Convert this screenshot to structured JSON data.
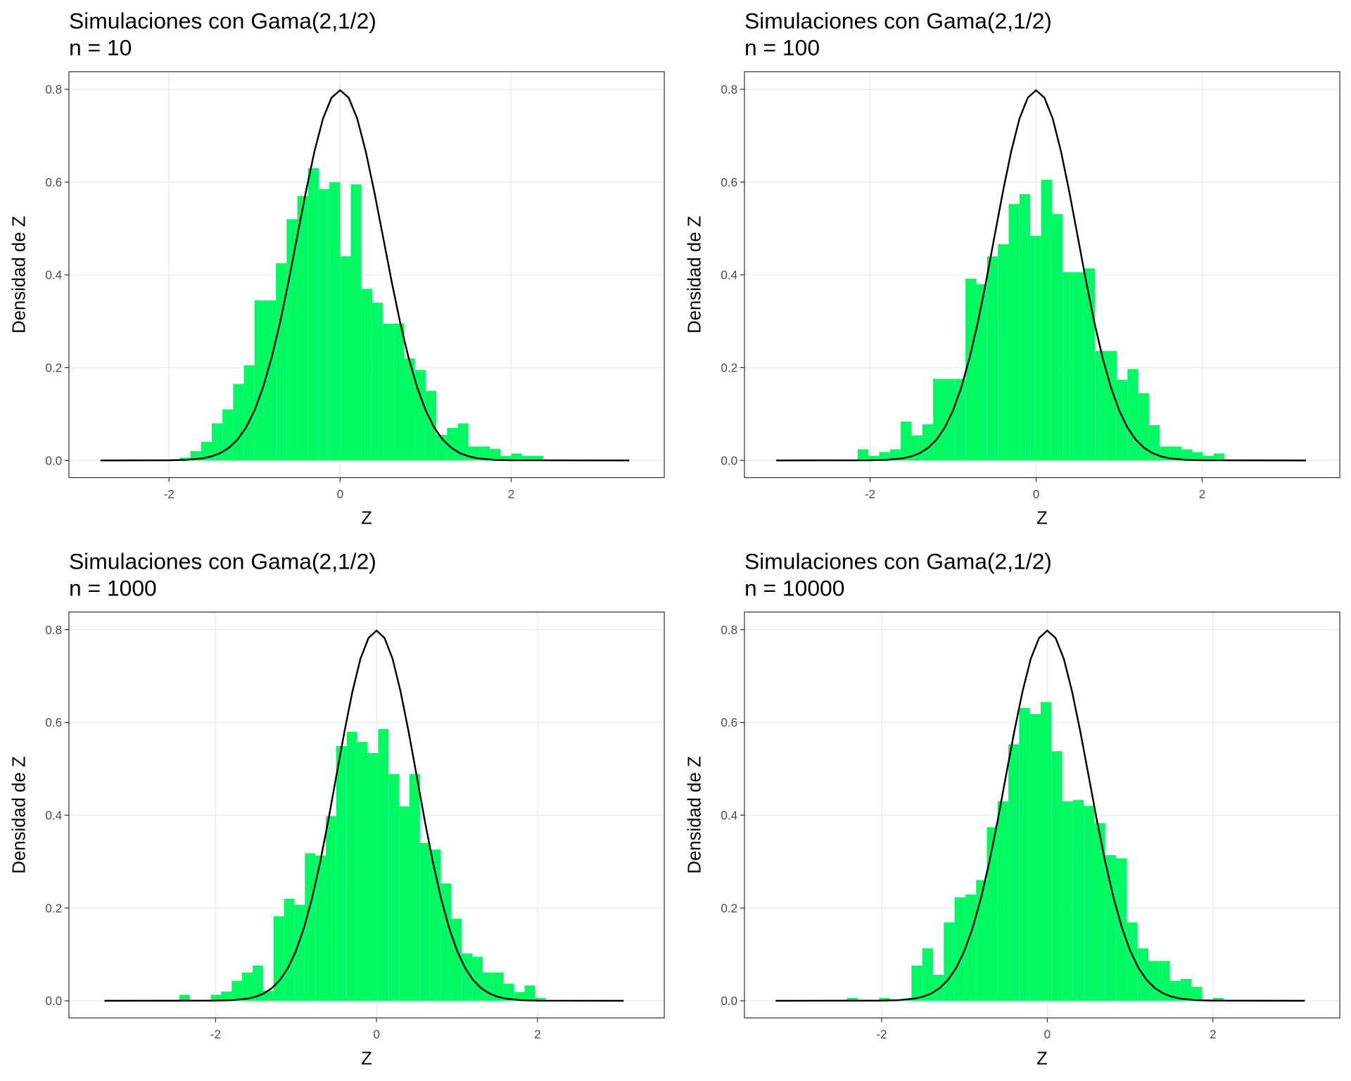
{
  "chart_data": [
    {
      "type": "histogram",
      "title": "Simulaciones con Gama(2,1/2)",
      "subtitle": "n = 10",
      "xlabel": "Z",
      "ylabel": "Densidad de Z",
      "xlim": [
        -3.17,
        3.79
      ],
      "ylim": [
        -0.037,
        0.838
      ],
      "xticks": [
        -2,
        0,
        2
      ],
      "yticks": [
        {
          "value": 0,
          "label": "0.0"
        },
        0.2,
        0.4,
        0.6,
        0.8
      ],
      "grid": true,
      "color": "#00fa64",
      "bins": [
        -1.875,
        -1.75,
        -1.625,
        -1.5,
        -1.375,
        -1.25,
        -1.125,
        -1,
        -0.875,
        -0.75,
        -0.625,
        -0.5,
        -0.375,
        -0.25,
        -0.125,
        0,
        0.125,
        0.25,
        0.375,
        0.5,
        0.625,
        0.75,
        0.875,
        1,
        1.125,
        1.25,
        1.375,
        1.5,
        1.625,
        1.75,
        1.875,
        2,
        2.125,
        2.25,
        2.375
      ],
      "values": [
        0.006,
        0.02,
        0.04,
        0.08,
        0.11,
        0.165,
        0.205,
        0.345,
        0.345,
        0.425,
        0.52,
        0.57,
        0.63,
        0.585,
        0.6,
        0.44,
        0.595,
        0.37,
        0.34,
        0.295,
        0.295,
        0.22,
        0.195,
        0.15,
        0.055,
        0.07,
        0.08,
        0.03,
        0.03,
        0.025,
        0.01,
        0.015,
        0.01,
        0.01
      ],
      "curve": {
        "color": "#000000",
        "x": [
          -2.8,
          -2,
          -1.8,
          -1.6,
          -1.5,
          -1.4,
          -1.3,
          -1.2,
          -1.1,
          -1,
          -0.9,
          -0.8,
          -0.7,
          -0.6,
          -0.5,
          -0.4,
          -0.3,
          -0.2,
          -0.1,
          0,
          0.1,
          0.2,
          0.3,
          0.4,
          0.5,
          0.6,
          0.7,
          0.8,
          0.9,
          1,
          1.1,
          1.2,
          1.3,
          1.4,
          1.5,
          1.6,
          1.8,
          2,
          3.38
        ],
        "values": [
          0,
          0.0003,
          0.0012,
          0.0048,
          0.0089,
          0.0158,
          0.0272,
          0.0448,
          0.0709,
          0.108,
          0.158,
          0.222,
          0.299,
          0.388,
          0.484,
          0.579,
          0.666,
          0.737,
          0.782,
          0.798,
          0.782,
          0.737,
          0.666,
          0.579,
          0.484,
          0.388,
          0.299,
          0.222,
          0.158,
          0.108,
          0.0709,
          0.0448,
          0.0272,
          0.0158,
          0.0089,
          0.0048,
          0.0012,
          0.0003,
          0
        ]
      }
    },
    {
      "type": "histogram",
      "title": "Simulaciones con Gama(2,1/2)",
      "subtitle": "n = 100",
      "xlabel": "Z",
      "ylabel": "Densidad de Z",
      "xlim": [
        -3.513,
        3.658
      ],
      "ylim": [
        -0.037,
        0.838
      ],
      "xticks": [
        -2,
        0,
        2
      ],
      "yticks": [
        {
          "value": 0,
          "label": "0.0"
        },
        0.2,
        0.4,
        0.6,
        0.8
      ],
      "grid": true,
      "color": "#00fa64",
      "bins": [
        -2.15,
        -2.02,
        -1.89,
        -1.76,
        -1.63,
        -1.5,
        -1.37,
        -1.24,
        -1.11,
        -0.98,
        -0.85,
        -0.72,
        -0.59,
        -0.46,
        -0.33,
        -0.2,
        -0.07,
        0.06,
        0.19,
        0.32,
        0.45,
        0.58,
        0.71,
        0.84,
        0.97,
        1.1,
        1.23,
        1.36,
        1.49,
        1.62,
        1.75,
        1.88,
        2.01,
        2.14,
        2.27
      ],
      "values": [
        0.024,
        0.01,
        0.018,
        0.024,
        0.084,
        0.054,
        0.078,
        0.176,
        0.176,
        0.176,
        0.392,
        0.38,
        0.44,
        0.466,
        0.553,
        0.574,
        0.484,
        0.605,
        0.531,
        0.406,
        0.406,
        0.414,
        0.236,
        0.236,
        0.174,
        0.197,
        0.145,
        0.076,
        0.03,
        0.03,
        0.024,
        0.018,
        0.01,
        0.015
      ],
      "curve": {
        "color": "#000000",
        "x": [
          -3.13,
          -2,
          -1.8,
          -1.6,
          -1.5,
          -1.4,
          -1.3,
          -1.2,
          -1.1,
          -1,
          -0.9,
          -0.8,
          -0.7,
          -0.6,
          -0.5,
          -0.4,
          -0.3,
          -0.2,
          -0.1,
          0,
          0.1,
          0.2,
          0.3,
          0.4,
          0.5,
          0.6,
          0.7,
          0.8,
          0.9,
          1,
          1.1,
          1.2,
          1.3,
          1.4,
          1.5,
          1.6,
          1.8,
          2,
          3.25
        ],
        "values": [
          0,
          0.0003,
          0.0012,
          0.0048,
          0.0089,
          0.0158,
          0.0272,
          0.0448,
          0.0709,
          0.108,
          0.158,
          0.222,
          0.299,
          0.388,
          0.484,
          0.579,
          0.666,
          0.737,
          0.782,
          0.798,
          0.782,
          0.737,
          0.666,
          0.579,
          0.484,
          0.388,
          0.299,
          0.222,
          0.158,
          0.108,
          0.0709,
          0.0448,
          0.0272,
          0.0158,
          0.0089,
          0.0048,
          0.0012,
          0.0003,
          0
        ]
      }
    },
    {
      "type": "histogram",
      "title": "Simulaciones con Gama(2,1/2)",
      "subtitle": "n = 1000",
      "xlabel": "Z",
      "ylabel": "Densidad de Z",
      "xlim": [
        -3.822,
        3.576
      ],
      "ylim": [
        -0.037,
        0.838
      ],
      "xticks": [
        -2,
        0,
        2
      ],
      "yticks": [
        {
          "value": 0,
          "label": "0.0"
        },
        0.2,
        0.4,
        0.6,
        0.8
      ],
      "grid": true,
      "color": "#00fa64",
      "bins": [
        -2.45,
        -2.32,
        -2.19,
        -2.06,
        -1.93,
        -1.8,
        -1.67,
        -1.54,
        -1.41,
        -1.28,
        -1.15,
        -1.02,
        -0.89,
        -0.76,
        -0.63,
        -0.5,
        -0.37,
        -0.24,
        -0.11,
        0.02,
        0.15,
        0.28,
        0.41,
        0.54,
        0.67,
        0.8,
        0.93,
        1.06,
        1.19,
        1.32,
        1.45,
        1.58,
        1.71,
        1.84,
        1.97,
        2.1
      ],
      "values": [
        0.013,
        0,
        0,
        0.013,
        0.02,
        0.043,
        0.061,
        0.076,
        0.022,
        0.182,
        0.22,
        0.207,
        0.318,
        0.313,
        0.398,
        0.549,
        0.58,
        0.558,
        0.534,
        0.586,
        0.489,
        0.419,
        0.489,
        0.34,
        0.326,
        0.253,
        0.177,
        0.102,
        0.095,
        0.061,
        0.061,
        0.037,
        0.019,
        0.033,
        0.006
      ],
      "curve": {
        "color": "#000000",
        "x": [
          -3.38,
          -2,
          -1.8,
          -1.6,
          -1.5,
          -1.4,
          -1.3,
          -1.2,
          -1.1,
          -1,
          -0.9,
          -0.8,
          -0.7,
          -0.6,
          -0.5,
          -0.4,
          -0.3,
          -0.2,
          -0.1,
          0,
          0.1,
          0.2,
          0.3,
          0.4,
          0.5,
          0.6,
          0.7,
          0.8,
          0.9,
          1,
          1.1,
          1.2,
          1.3,
          1.4,
          1.5,
          1.6,
          1.8,
          2,
          3.07
        ],
        "values": [
          0,
          0.0003,
          0.0012,
          0.0048,
          0.0089,
          0.0158,
          0.0272,
          0.0448,
          0.0709,
          0.108,
          0.158,
          0.222,
          0.299,
          0.388,
          0.484,
          0.579,
          0.666,
          0.737,
          0.782,
          0.798,
          0.782,
          0.737,
          0.666,
          0.579,
          0.484,
          0.388,
          0.299,
          0.222,
          0.158,
          0.108,
          0.0709,
          0.0448,
          0.0272,
          0.0158,
          0.0089,
          0.0048,
          0.0012,
          0.0003,
          0
        ]
      }
    },
    {
      "type": "histogram",
      "title": "Simulaciones con Gama(2,1/2)",
      "subtitle": "n = 10000",
      "xlabel": "Z",
      "ylabel": "Densidad de Z",
      "xlim": [
        -3.657,
        3.532
      ],
      "ylim": [
        -0.037,
        0.838
      ],
      "xticks": [
        -2,
        0,
        2
      ],
      "yticks": [
        {
          "value": 0,
          "label": "0.0"
        },
        0.2,
        0.4,
        0.6,
        0.8
      ],
      "grid": true,
      "color": "#00fa64",
      "bins": [
        -2.42,
        -2.29,
        -2.16,
        -2.03,
        -1.9,
        -1.77,
        -1.64,
        -1.51,
        -1.38,
        -1.25,
        -1.12,
        -0.99,
        -0.86,
        -0.73,
        -0.6,
        -0.47,
        -0.34,
        -0.21,
        -0.08,
        0.05,
        0.18,
        0.31,
        0.44,
        0.57,
        0.7,
        0.83,
        0.96,
        1.09,
        1.22,
        1.35,
        1.48,
        1.61,
        1.74,
        1.87,
        2,
        2.13
      ],
      "values": [
        0.006,
        0,
        0,
        0.006,
        0,
        0.002,
        0.076,
        0.113,
        0.056,
        0.169,
        0.223,
        0.229,
        0.26,
        0.374,
        0.43,
        0.553,
        0.631,
        0.618,
        0.644,
        0.538,
        0.43,
        0.433,
        0.42,
        0.383,
        0.314,
        0.307,
        0.169,
        0.113,
        0.086,
        0.086,
        0.043,
        0.047,
        0.03,
        0,
        0.006
      ],
      "curve": {
        "color": "#000000",
        "x": [
          -3.28,
          -2,
          -1.8,
          -1.6,
          -1.5,
          -1.4,
          -1.3,
          -1.2,
          -1.1,
          -1,
          -0.9,
          -0.8,
          -0.7,
          -0.6,
          -0.5,
          -0.4,
          -0.3,
          -0.2,
          -0.1,
          0,
          0.1,
          0.2,
          0.3,
          0.4,
          0.5,
          0.6,
          0.7,
          0.8,
          0.9,
          1,
          1.1,
          1.2,
          1.3,
          1.4,
          1.5,
          1.6,
          1.8,
          2,
          3.11
        ],
        "values": [
          0,
          0.0003,
          0.0012,
          0.0048,
          0.0089,
          0.0158,
          0.0272,
          0.0448,
          0.0709,
          0.108,
          0.158,
          0.222,
          0.299,
          0.388,
          0.484,
          0.579,
          0.666,
          0.737,
          0.782,
          0.798,
          0.782,
          0.737,
          0.666,
          0.579,
          0.484,
          0.388,
          0.299,
          0.222,
          0.158,
          0.108,
          0.0709,
          0.0448,
          0.0272,
          0.0158,
          0.0089,
          0.0048,
          0.0012,
          0.0003,
          0
        ]
      }
    }
  ]
}
